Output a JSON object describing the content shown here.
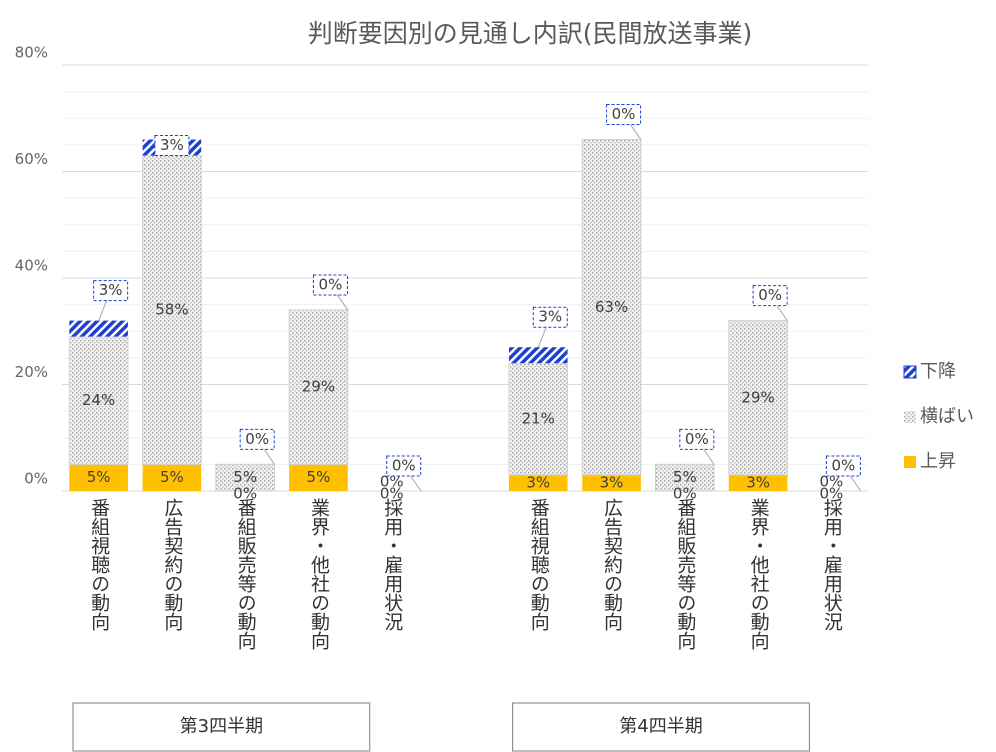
{
  "chart_data": {
    "type": "bar",
    "stacked": true,
    "title": "判断要因別の見通し内訳(民間放送事業)",
    "group_labels": [
      "第3四半期",
      "第4四半期"
    ],
    "categories": [
      "番組視聴の動向",
      "広告契約の動向",
      "番組販売等の動向",
      "業界・他社の動向",
      "採用・雇用状況",
      "番組視聴の動向",
      "広告契約の動向",
      "番組販売等の動向",
      "業界・他社の動向",
      "採用・雇用状況"
    ],
    "series": [
      {
        "name": "上昇",
        "color": "#ffc000",
        "values": [
          5,
          5,
          0,
          5,
          0,
          3,
          3,
          0,
          3,
          0
        ],
        "value_labels": [
          "5%",
          "5%",
          "0%",
          "5%",
          "0%",
          "3%",
          "3%",
          "0%",
          "3%",
          "0%"
        ]
      },
      {
        "name": "横ばい",
        "color": "#d9d9d9",
        "values": [
          24,
          58,
          5,
          29,
          0,
          21,
          63,
          5,
          29,
          0
        ],
        "value_labels": [
          "24%",
          "58%",
          "5%",
          "29%",
          "0%",
          "21%",
          "63%",
          "5%",
          "29%",
          "0%"
        ]
      },
      {
        "name": "下降",
        "color": "#1f3fd0",
        "values": [
          3,
          3,
          0,
          0,
          0,
          3,
          0,
          0,
          0,
          0
        ],
        "value_labels": [
          "3%",
          "3%",
          "0%",
          "0%",
          "0%",
          "3%",
          "0%",
          "0%",
          "0%",
          "0%"
        ]
      }
    ],
    "ylim": [
      0,
      80
    ],
    "yticks": [
      {
        "value": 0,
        "label": "0%"
      },
      {
        "value": 20,
        "label": "20%"
      },
      {
        "value": 40,
        "label": "40%"
      },
      {
        "value": 60,
        "label": "60%"
      },
      {
        "value": 80,
        "label": "80%"
      }
    ],
    "minor_yticks": [
      5,
      10,
      15,
      25,
      30,
      35,
      45,
      50,
      55,
      65,
      70,
      75
    ],
    "grid": true,
    "legend": "right"
  }
}
